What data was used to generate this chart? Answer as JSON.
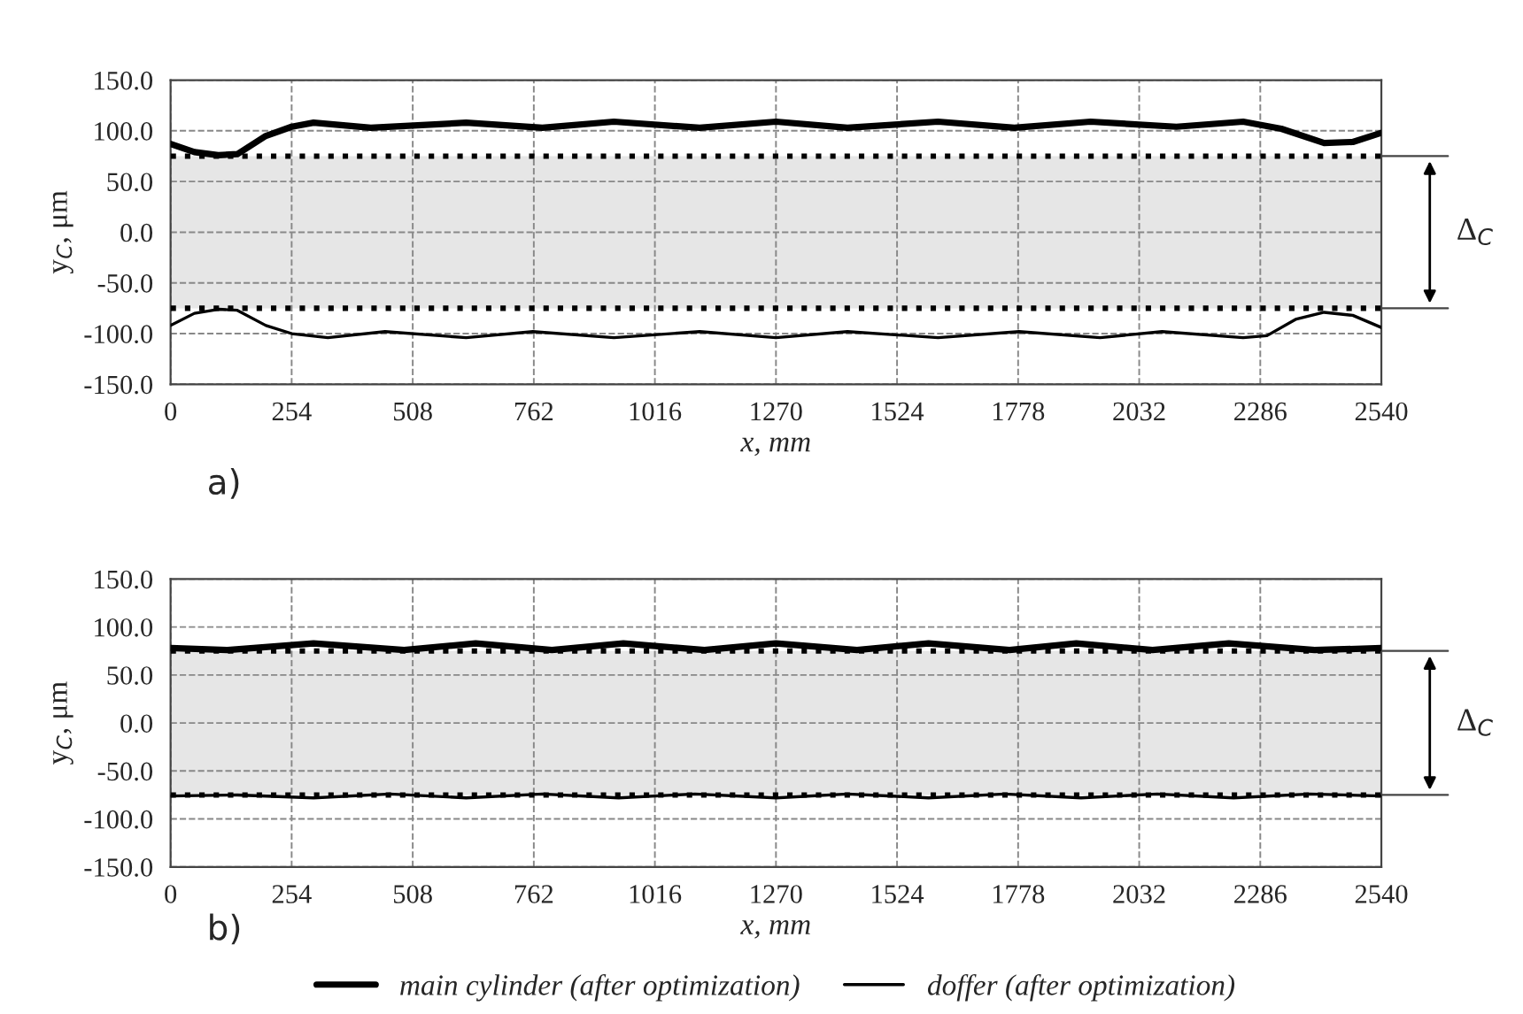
{
  "chart_data": [
    {
      "type": "line",
      "xlabel": "x, mm",
      "ylabel": "y$_{C}$, μm",
      "annotations": [
        "a)",
        "Δ$_{C}$"
      ],
      "xlim": [
        0,
        2540
      ],
      "xticks": [
        0,
        254,
        508,
        762,
        1016,
        1270,
        1524,
        1778,
        2032,
        2286,
        2540
      ],
      "ylim": [
        -150,
        150
      ],
      "yticks": [
        {
          "value": -150,
          "label": "-150.0"
        },
        {
          "value": -100,
          "label": "-100.0"
        },
        {
          "value": -50,
          "label": "-50.0"
        },
        {
          "value": 0,
          "label": "0.0"
        },
        {
          "value": 50,
          "label": "50.0"
        },
        {
          "value": 100,
          "label": "100.0"
        },
        {
          "value": 150,
          "label": "150.0"
        }
      ],
      "grid": true,
      "legend": false,
      "bands": [
        {
          "axis": "y",
          "from": -75,
          "to": 75,
          "color": "#e6e6e6"
        }
      ],
      "ref_lines": [
        {
          "axis": "y",
          "value": 75,
          "line_style": "dotted",
          "color": "#000000"
        },
        {
          "axis": "y",
          "value": -75,
          "line_style": "dotted",
          "color": "#000000"
        }
      ],
      "series": [
        {
          "color": "#000000",
          "x": [
            0,
            50,
            100,
            140,
            200,
            254,
            300,
            420,
            620,
            780,
            930,
            1110,
            1270,
            1420,
            1610,
            1770,
            1930,
            2110,
            2250,
            2330,
            2420,
            2480,
            2540
          ],
          "values": [
            87,
            79,
            76,
            77,
            95,
            104,
            108,
            103,
            108,
            103,
            109,
            103,
            109,
            103,
            109,
            103,
            109,
            104,
            109,
            102,
            88,
            89,
            98
          ]
        },
        {
          "color": "#000000",
          "x": [
            0,
            50,
            100,
            140,
            200,
            254,
            330,
            450,
            620,
            760,
            930,
            1110,
            1270,
            1420,
            1610,
            1780,
            1950,
            2080,
            2250,
            2300,
            2360,
            2420,
            2480,
            2540
          ],
          "values": [
            -92,
            -80,
            -76,
            -77,
            -92,
            -100,
            -104,
            -98,
            -104,
            -98,
            -104,
            -98,
            -104,
            -98,
            -104,
            -98,
            -104,
            -98,
            -104,
            -102,
            -86,
            -79,
            -82,
            -94
          ]
        }
      ]
    },
    {
      "type": "line",
      "xlabel": "x, mm",
      "ylabel": "y$_{C}$, μm",
      "annotations": [
        "b)",
        "Δ$_{C}$"
      ],
      "xlim": [
        0,
        2540
      ],
      "xticks": [
        0,
        254,
        508,
        762,
        1016,
        1270,
        1524,
        1778,
        2032,
        2286,
        2540
      ],
      "ylim": [
        -150,
        150
      ],
      "yticks": [
        {
          "value": -150,
          "label": "-150.0"
        },
        {
          "value": -100,
          "label": "-100.0"
        },
        {
          "value": -50,
          "label": "-50.0"
        },
        {
          "value": 0,
          "label": "0.0"
        },
        {
          "value": 50,
          "label": "50.0"
        },
        {
          "value": 100,
          "label": "100.0"
        },
        {
          "value": 150,
          "label": "150.0"
        }
      ],
      "grid": true,
      "legend": "bottom",
      "bands": [
        {
          "axis": "y",
          "from": -75,
          "to": 75,
          "color": "#e6e6e6"
        }
      ],
      "ref_lines": [
        {
          "axis": "y",
          "value": 75,
          "line_style": "dotted",
          "color": "#000000"
        },
        {
          "axis": "y",
          "value": -75,
          "line_style": "dotted",
          "color": "#000000"
        }
      ],
      "series": [
        {
          "name": "main cylinder (after optimization)",
          "color": "#000000",
          "x": [
            0,
            120,
            300,
            490,
            640,
            800,
            950,
            1120,
            1270,
            1440,
            1590,
            1760,
            1900,
            2060,
            2220,
            2400,
            2540
          ],
          "values": [
            78,
            76,
            83,
            76,
            83,
            76,
            83,
            76,
            83,
            76,
            83,
            76,
            83,
            76,
            83,
            76,
            78
          ]
        },
        {
          "name": "doffer (after optimization)",
          "color": "#000000",
          "x": [
            0,
            140,
            300,
            460,
            620,
            780,
            940,
            1100,
            1270,
            1420,
            1590,
            1750,
            1910,
            2070,
            2230,
            2390,
            2540
          ],
          "values": [
            -76,
            -75,
            -78,
            -74,
            -78,
            -74,
            -78,
            -74,
            -78,
            -74,
            -78,
            -74,
            -78,
            -74,
            -78,
            -74,
            -76
          ]
        }
      ]
    }
  ]
}
